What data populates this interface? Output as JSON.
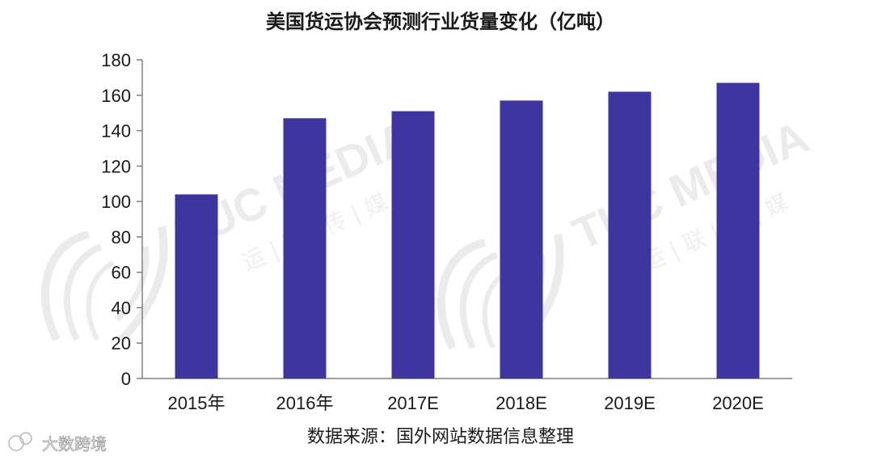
{
  "chart_data": {
    "type": "bar",
    "title": "美国货运协会预测行业货量变化（亿吨）",
    "categories": [
      "2015年",
      "2016年",
      "2017E",
      "2018E",
      "2019E",
      "2020E"
    ],
    "values": [
      104,
      147,
      151,
      157,
      162,
      167
    ],
    "ylim": [
      0,
      180
    ],
    "yticks": [
      0,
      20,
      40,
      60,
      80,
      100,
      120,
      140,
      160,
      180
    ],
    "bar_color": "#3f35a0",
    "grid": false,
    "legend": "none"
  },
  "source_note": "数据来源：国外网站数据信息整理",
  "watermarks": {
    "brand": "TUC MEDIA",
    "brand_cn": "运 | 联 | 传 | 媒",
    "corner": "大数跨境"
  }
}
